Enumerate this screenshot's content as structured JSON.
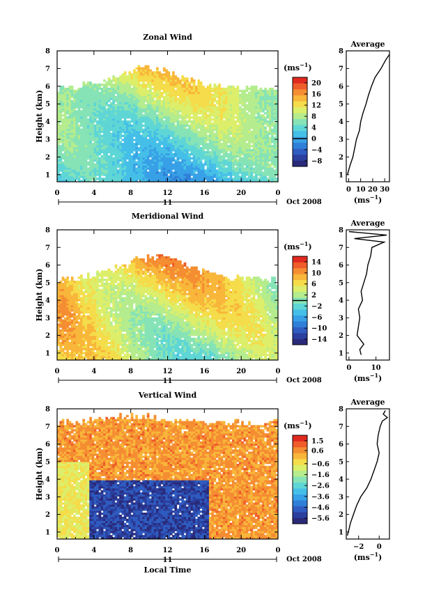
{
  "chart_data": [
    {
      "type": "heatmap",
      "title": "Zonal Wind",
      "ylabel": "Height (km)",
      "xlim": [
        0,
        24
      ],
      "ylim": [
        0.6,
        8
      ],
      "xticks": [
        "0",
        "4",
        "8",
        "12",
        "16",
        "20",
        "0"
      ],
      "yticks": [
        "1",
        "2",
        "3",
        "4",
        "5",
        "6",
        "7",
        "8"
      ],
      "day_label": "11",
      "date_label": "Oct 2008",
      "colorbar": {
        "unit_label": "(ms",
        "unit_exp": "−1",
        "unit_close": ")",
        "range": [
          -10,
          22
        ],
        "tick_values": [
          20,
          16,
          12,
          8,
          4,
          0,
          -4,
          -8
        ],
        "tick_labels": [
          "20",
          "16",
          "12",
          "8",
          "4",
          "0",
          "−4",
          "−8"
        ]
      },
      "field_params": {
        "base": 5,
        "grad": 1.6,
        "slope": 0.15,
        "amp": 3.2,
        "top_base": 5.9,
        "top_amp": 1.1,
        "top_peak": 10,
        "keep_top_high": true
      },
      "profile": {
        "title": "Average",
        "xlim": [
          -2,
          34
        ],
        "xticks": [
          "0",
          "10",
          "20",
          "30"
        ],
        "tick_values": [
          0,
          10,
          20,
          30
        ],
        "xlabel": "(ms",
        "xlabel_exp": "−1",
        "xlabel_close": ")",
        "heights": [
          1.0,
          1.5,
          2.0,
          2.5,
          3.0,
          3.5,
          4.0,
          4.5,
          5.0,
          5.5,
          6.0,
          6.5,
          7.0,
          7.5,
          7.8
        ],
        "values": [
          -1.0,
          1.0,
          3.5,
          5.0,
          6.5,
          9.0,
          10.0,
          12.0,
          14.5,
          16.5,
          19.0,
          22.0,
          27.0,
          31.0,
          34.0
        ]
      }
    },
    {
      "type": "heatmap",
      "title": "Meridional Wind",
      "ylabel": "Height (km)",
      "xlim": [
        0,
        24
      ],
      "ylim": [
        0.6,
        8
      ],
      "xticks": [
        "0",
        "4",
        "8",
        "12",
        "16",
        "20",
        "0"
      ],
      "yticks": [
        "1",
        "2",
        "3",
        "4",
        "5",
        "6",
        "7",
        "8"
      ],
      "day_label": "11",
      "date_label": "Oct 2008",
      "colorbar": {
        "unit_label": "(ms",
        "unit_exp": "−1",
        "unit_close": ")",
        "range": [
          -16,
          16
        ],
        "tick_values": [
          14,
          10,
          6,
          2,
          -2,
          -6,
          -10,
          -14
        ],
        "tick_labels": [
          "14",
          "10",
          "6",
          "2",
          "−2",
          "−6",
          "−10",
          "−14"
        ]
      },
      "field_params": {
        "base": 5,
        "grad": 1.0,
        "slope": 0.2,
        "amp": 4.0,
        "top_base": 5.2,
        "top_amp": 1.3,
        "top_peak": 10.5,
        "keep_top_high": true
      },
      "profile": {
        "title": "Average",
        "xlim": [
          -1,
          15
        ],
        "xticks": [
          "0",
          "10"
        ],
        "tick_values": [
          0,
          10
        ],
        "xlabel": "(ms",
        "xlabel_exp": "−1",
        "xlabel_close": ")",
        "heights": [
          0.9,
          1.2,
          1.5,
          2.0,
          2.5,
          3.0,
          3.5,
          4.0,
          4.5,
          5.0,
          5.5,
          6.0,
          6.5,
          7.0,
          7.3,
          7.5,
          7.7,
          7.9
        ],
        "values": [
          4.5,
          4.0,
          5.5,
          3.0,
          3.5,
          4.0,
          3.5,
          5.0,
          4.5,
          5.5,
          6.5,
          7.0,
          8.0,
          8.5,
          13.0,
          2.0,
          14.0,
          0.0
        ]
      }
    },
    {
      "type": "heatmap",
      "title": "Vertical Wind",
      "ylabel": "Height (km)",
      "xlabel": "Local Time",
      "xlim": [
        0,
        24
      ],
      "ylim": [
        0.6,
        8
      ],
      "xticks": [
        "0",
        "4",
        "8",
        "12",
        "16",
        "20",
        "0"
      ],
      "yticks": [
        "1",
        "2",
        "3",
        "4",
        "5",
        "6",
        "7",
        "8"
      ],
      "day_label": "11",
      "date_label": "Oct 2008",
      "colorbar": {
        "unit_label": "(ms",
        "unit_exp": "−1",
        "unit_close": ")",
        "range": [
          -6.1,
          2.0
        ],
        "tick_values": [
          1.5,
          0.6,
          -0.6,
          -1.6,
          -2.6,
          -3.6,
          -4.6,
          -5.6
        ],
        "tick_labels": [
          "1.5",
          "0.6",
          "−0.6",
          "−1.6",
          "−2.6",
          "−3.6",
          "−4.6",
          "−5.6"
        ]
      },
      "field_params": {
        "base": 0.5,
        "grad": 0.0,
        "slope": 0.0,
        "amp": 0.6,
        "top_base": 7.2,
        "top_amp": 0.4,
        "top_peak": 8,
        "keep_top_high": false
      },
      "profile": {
        "title": "Average",
        "xlim": [
          -3.2,
          1.0
        ],
        "xticks": [
          "−2",
          "0"
        ],
        "tick_values": [
          -2,
          0
        ],
        "xlabel": "(ms",
        "xlabel_exp": "−1",
        "xlabel_close": ")",
        "heights": [
          0.8,
          1.0,
          1.5,
          2.0,
          2.5,
          3.0,
          3.5,
          4.0,
          4.5,
          5.0,
          5.5,
          6.0,
          6.5,
          7.0,
          7.3,
          7.5,
          7.7,
          7.9
        ],
        "values": [
          -3.1,
          -3.0,
          -2.8,
          -2.5,
          -2.2,
          -1.8,
          -1.2,
          -0.8,
          -0.5,
          -0.2,
          0.0,
          -0.2,
          -0.1,
          0.1,
          0.3,
          0.8,
          0.4,
          0.6
        ]
      }
    }
  ]
}
